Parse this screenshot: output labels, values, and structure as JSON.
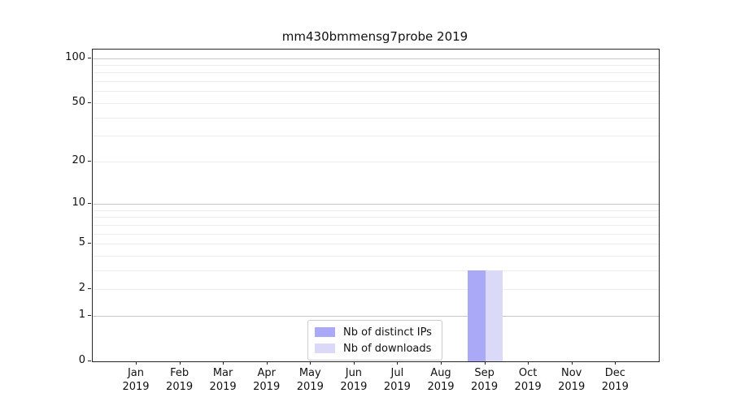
{
  "title": "mm430bmmensg7probe 2019",
  "colors": {
    "distinct_ips_bar": "#a9a9f7",
    "downloads_bar": "#dadaf8",
    "grid_major": "#c7c7c7",
    "grid_minor": "#ededed",
    "spine": "#262626",
    "legend_border": "#cccccc",
    "text": "#111111"
  },
  "chart_data": {
    "type": "bar",
    "title": "mm430bmmensg7probe 2019",
    "categories": [
      "Jan 2019",
      "Feb 2019",
      "Mar 2019",
      "Apr 2019",
      "May 2019",
      "Jun 2019",
      "Jul 2019",
      "Aug 2019",
      "Sep 2019",
      "Oct 2019",
      "Nov 2019",
      "Dec 2019"
    ],
    "series": [
      {
        "name": "Nb of distinct IPs",
        "color": "#a9a9f7",
        "values": [
          0,
          0,
          0,
          0,
          0,
          0,
          0,
          0,
          3,
          0,
          0,
          0
        ]
      },
      {
        "name": "Nb of downloads",
        "color": "#dadaf8",
        "values": [
          0,
          0,
          0,
          0,
          0,
          0,
          0,
          0,
          3,
          0,
          0,
          0
        ]
      }
    ],
    "xlabel": "",
    "ylabel": "",
    "y_scale": "log1p",
    "ylim": [
      0,
      114
    ],
    "y_ticks": [
      0,
      1,
      2,
      5,
      10,
      20,
      50,
      100
    ],
    "y_minor_ticks": [
      3,
      4,
      6,
      7,
      8,
      9,
      30,
      40,
      60,
      70,
      80,
      90
    ],
    "y_major_gridlines": [
      1,
      10,
      100
    ],
    "grid": "horizontal",
    "legend_position": "lower center"
  }
}
